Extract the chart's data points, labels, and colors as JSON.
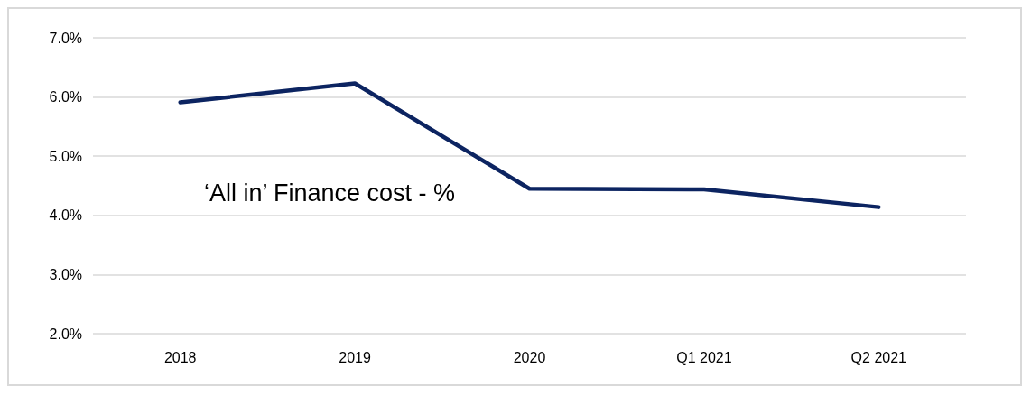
{
  "chart_data": {
    "type": "line",
    "categories": [
      "2018",
      "2019",
      "2020",
      "Q1 2021",
      "Q2 2021"
    ],
    "series": [
      {
        "color": "#0c2461",
        "values": [
          5.91,
          6.23,
          4.45,
          4.44,
          4.14
        ]
      }
    ],
    "ylim": [
      2,
      7
    ],
    "yticks": [
      {
        "value": 2,
        "label": "2.0%"
      },
      {
        "value": 3,
        "label": "3.0%"
      },
      {
        "value": 4,
        "label": "4.0%"
      },
      {
        "value": 5,
        "label": "5.0%"
      },
      {
        "value": 6,
        "label": "6.0%"
      },
      {
        "value": 7,
        "label": "7.0%"
      }
    ],
    "grid": "y",
    "marker": "none",
    "line_style": "solid",
    "annotations": [
      "‘All in’ Finance cost - %"
    ]
  }
}
